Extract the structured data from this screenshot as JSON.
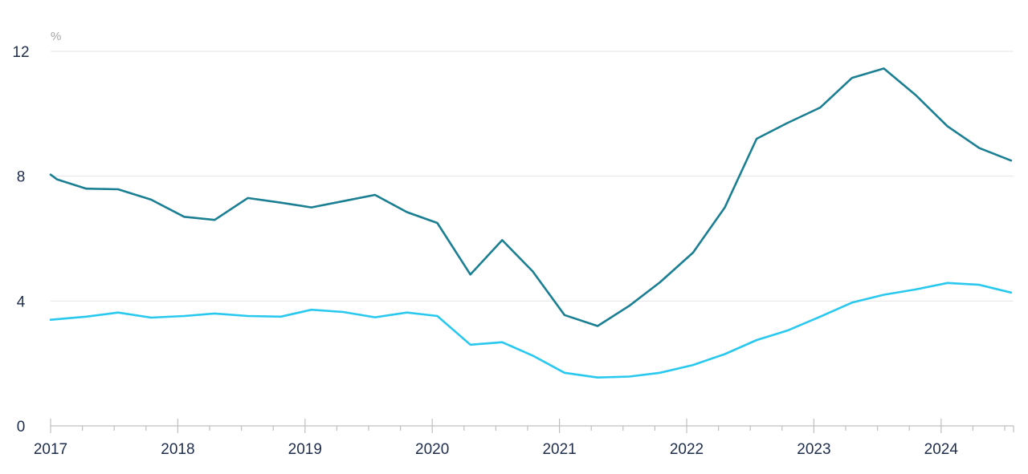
{
  "chart_data": {
    "type": "line",
    "title": "",
    "xlabel": "",
    "ylabel": "",
    "y_unit": "%",
    "ylim": [
      0,
      12
    ],
    "xlim": [
      2017.0,
      2024.6
    ],
    "y_ticks": [
      0,
      4,
      8,
      12
    ],
    "x_ticks": [
      "2017",
      "2018",
      "2019",
      "2020",
      "2021",
      "2022",
      "2023",
      "2024"
    ],
    "grid": true,
    "legend": "none",
    "series": [
      {
        "color": "#1a7f92",
        "x": [
          2017.0,
          2017.05,
          2017.28,
          2017.53,
          2017.79,
          2018.05,
          2018.29,
          2018.55,
          2018.81,
          2019.05,
          2019.3,
          2019.55,
          2019.8,
          2020.04,
          2020.3,
          2020.55,
          2020.79,
          2021.04,
          2021.3,
          2021.55,
          2021.79,
          2022.05,
          2022.3,
          2022.55,
          2022.79,
          2023.05,
          2023.3,
          2023.55,
          2023.8,
          2024.05,
          2024.3,
          2024.55
        ],
        "y": [
          8.05,
          7.9,
          7.6,
          7.58,
          7.25,
          6.7,
          6.6,
          7.3,
          7.15,
          7.0,
          7.2,
          7.4,
          6.85,
          6.5,
          4.85,
          5.95,
          4.95,
          3.55,
          3.2,
          3.85,
          4.6,
          5.55,
          7.0,
          9.2,
          9.7,
          10.2,
          11.15,
          11.45,
          10.6,
          9.6,
          8.9,
          8.5
        ]
      },
      {
        "color": "#29c8ee",
        "x": [
          2017.0,
          2017.28,
          2017.53,
          2017.79,
          2018.05,
          2018.29,
          2018.55,
          2018.81,
          2019.05,
          2019.3,
          2019.55,
          2019.8,
          2020.04,
          2020.3,
          2020.55,
          2020.79,
          2021.04,
          2021.3,
          2021.55,
          2021.79,
          2022.05,
          2022.3,
          2022.55,
          2022.79,
          2023.05,
          2023.3,
          2023.55,
          2023.8,
          2024.05,
          2024.3,
          2024.55
        ],
        "y": [
          3.4,
          3.5,
          3.63,
          3.47,
          3.52,
          3.6,
          3.52,
          3.5,
          3.72,
          3.65,
          3.48,
          3.63,
          3.52,
          2.6,
          2.68,
          2.25,
          1.7,
          1.55,
          1.58,
          1.7,
          1.95,
          2.3,
          2.75,
          3.05,
          3.5,
          3.95,
          4.2,
          4.37,
          4.58,
          4.52,
          4.27
        ]
      }
    ]
  }
}
